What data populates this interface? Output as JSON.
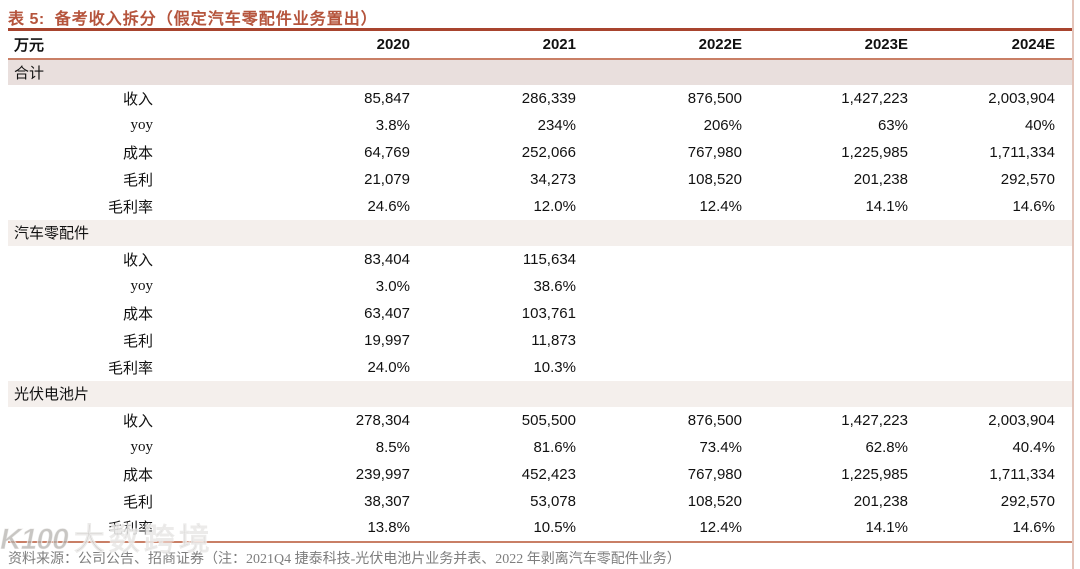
{
  "table": {
    "title_prefix": "表 5:",
    "title": "备考收入拆分（假定汽车零配件业务置出）",
    "unit_label": "万元",
    "columns": [
      "2020",
      "2021",
      "2022E",
      "2023E",
      "2024E"
    ],
    "sections": [
      {
        "name": "合计",
        "tone": "pink",
        "rows": [
          {
            "label": "收入",
            "values": [
              "85,847",
              "286,339",
              "876,500",
              "1,427,223",
              "2,003,904"
            ]
          },
          {
            "label": "yoy",
            "values": [
              "3.8%",
              "234%",
              "206%",
              "63%",
              "40%"
            ]
          },
          {
            "label": "成本",
            "values": [
              "64,769",
              "252,066",
              "767,980",
              "1,225,985",
              "1,711,334"
            ]
          },
          {
            "label": "毛利",
            "values": [
              "21,079",
              "34,273",
              "108,520",
              "201,238",
              "292,570"
            ]
          },
          {
            "label": "毛利率",
            "values": [
              "24.6%",
              "12.0%",
              "12.4%",
              "14.1%",
              "14.6%"
            ]
          }
        ]
      },
      {
        "name": "汽车零配件",
        "tone": "beige",
        "rows": [
          {
            "label": "收入",
            "values": [
              "83,404",
              "115,634",
              "",
              "",
              ""
            ]
          },
          {
            "label": "yoy",
            "values": [
              "3.0%",
              "38.6%",
              "",
              "",
              ""
            ]
          },
          {
            "label": "成本",
            "values": [
              "63,407",
              "103,761",
              "",
              "",
              ""
            ]
          },
          {
            "label": "毛利",
            "values": [
              "19,997",
              "11,873",
              "",
              "",
              ""
            ]
          },
          {
            "label": "毛利率",
            "values": [
              "24.0%",
              "10.3%",
              "",
              "",
              ""
            ]
          }
        ]
      },
      {
        "name": "光伏电池片",
        "tone": "beige",
        "rows": [
          {
            "label": "收入",
            "values": [
              "278,304",
              "505,500",
              "876,500",
              "1,427,223",
              "2,003,904"
            ]
          },
          {
            "label": "yoy",
            "values": [
              "8.5%",
              "81.6%",
              "73.4%",
              "62.8%",
              "40.4%"
            ]
          },
          {
            "label": "成本",
            "values": [
              "239,997",
              "452,423",
              "767,980",
              "1,225,985",
              "1,711,334"
            ]
          },
          {
            "label": "毛利",
            "values": [
              "38,307",
              "53,078",
              "108,520",
              "201,238",
              "292,570"
            ]
          },
          {
            "label": "毛利率",
            "values": [
              "13.8%",
              "10.5%",
              "12.4%",
              "14.1%",
              "14.6%"
            ]
          }
        ]
      }
    ]
  },
  "footer": {
    "source": "资料来源：公司公告、招商证券（注：2021Q4 捷泰科技-光伏电池片业务并表、2022 年剥离汽车零配件业务）"
  },
  "watermark": {
    "logo": "K100",
    "text": "大数跨境"
  },
  "colors": {
    "accent_brick": "#b5543c",
    "rule_dark": "#a8442e",
    "rule_light": "#c97f66",
    "band_pink": "#e9dfdd",
    "band_beige": "#f4efec",
    "footer_gray": "#7e7e7e"
  }
}
